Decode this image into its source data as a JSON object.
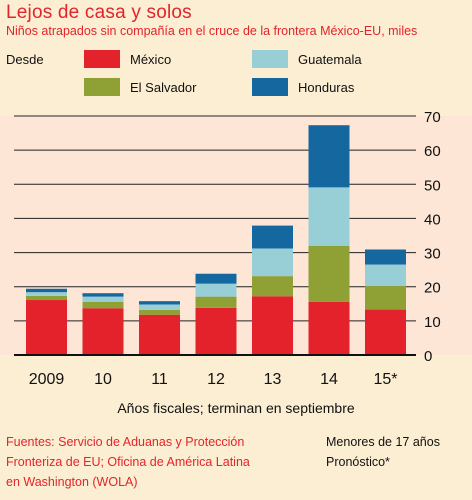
{
  "title": "Lejos de casa y solos",
  "subtitle": "Niños atrapados sin compañía en el cruce de la frontera México-EU, miles",
  "legend_prefix": "Desde",
  "colors": {
    "page_bg": "#fbeed2",
    "plot_bg": "#fde6d6",
    "accent": "#e2252b",
    "gridline": "#222222"
  },
  "chart_data": {
    "type": "bar",
    "stacked": true,
    "categories": [
      "2009",
      "10",
      "11",
      "12",
      "13",
      "14",
      "15*"
    ],
    "series": [
      {
        "name": "México",
        "color": "#e3222b",
        "values": [
          16.1,
          13.7,
          11.8,
          13.8,
          17.2,
          15.6,
          13.3
        ]
      },
      {
        "name": "El Salvador",
        "color": "#8fa035",
        "values": [
          1.2,
          1.9,
          1.4,
          3.3,
          5.9,
          16.4,
          6.9
        ]
      },
      {
        "name": "Guatemala",
        "color": "#98cfd6",
        "values": [
          1.1,
          1.5,
          1.6,
          3.8,
          8.1,
          17.1,
          6.3
        ]
      },
      {
        "name": "Honduras",
        "color": "#1567a0",
        "values": [
          1.0,
          1.0,
          0.97,
          2.9,
          6.7,
          18.2,
          4.4
        ]
      }
    ],
    "ylim": [
      0,
      70
    ],
    "yticks": [
      0,
      10,
      20,
      30,
      40,
      50,
      60,
      70
    ],
    "xlabel": "Años fiscales; terminan en septiembre",
    "ylabel": "",
    "grid": true,
    "legend_position": "top"
  },
  "footer": {
    "sources_line1": "Fuentes: Servicio de Aduanas y Protección",
    "sources_line2": "Fronteriza de EU; Oficina de América Latina",
    "sources_line3": "en Washington (WOLA)",
    "note1": "Menores de 17 años",
    "note2": "Pronóstico*"
  }
}
